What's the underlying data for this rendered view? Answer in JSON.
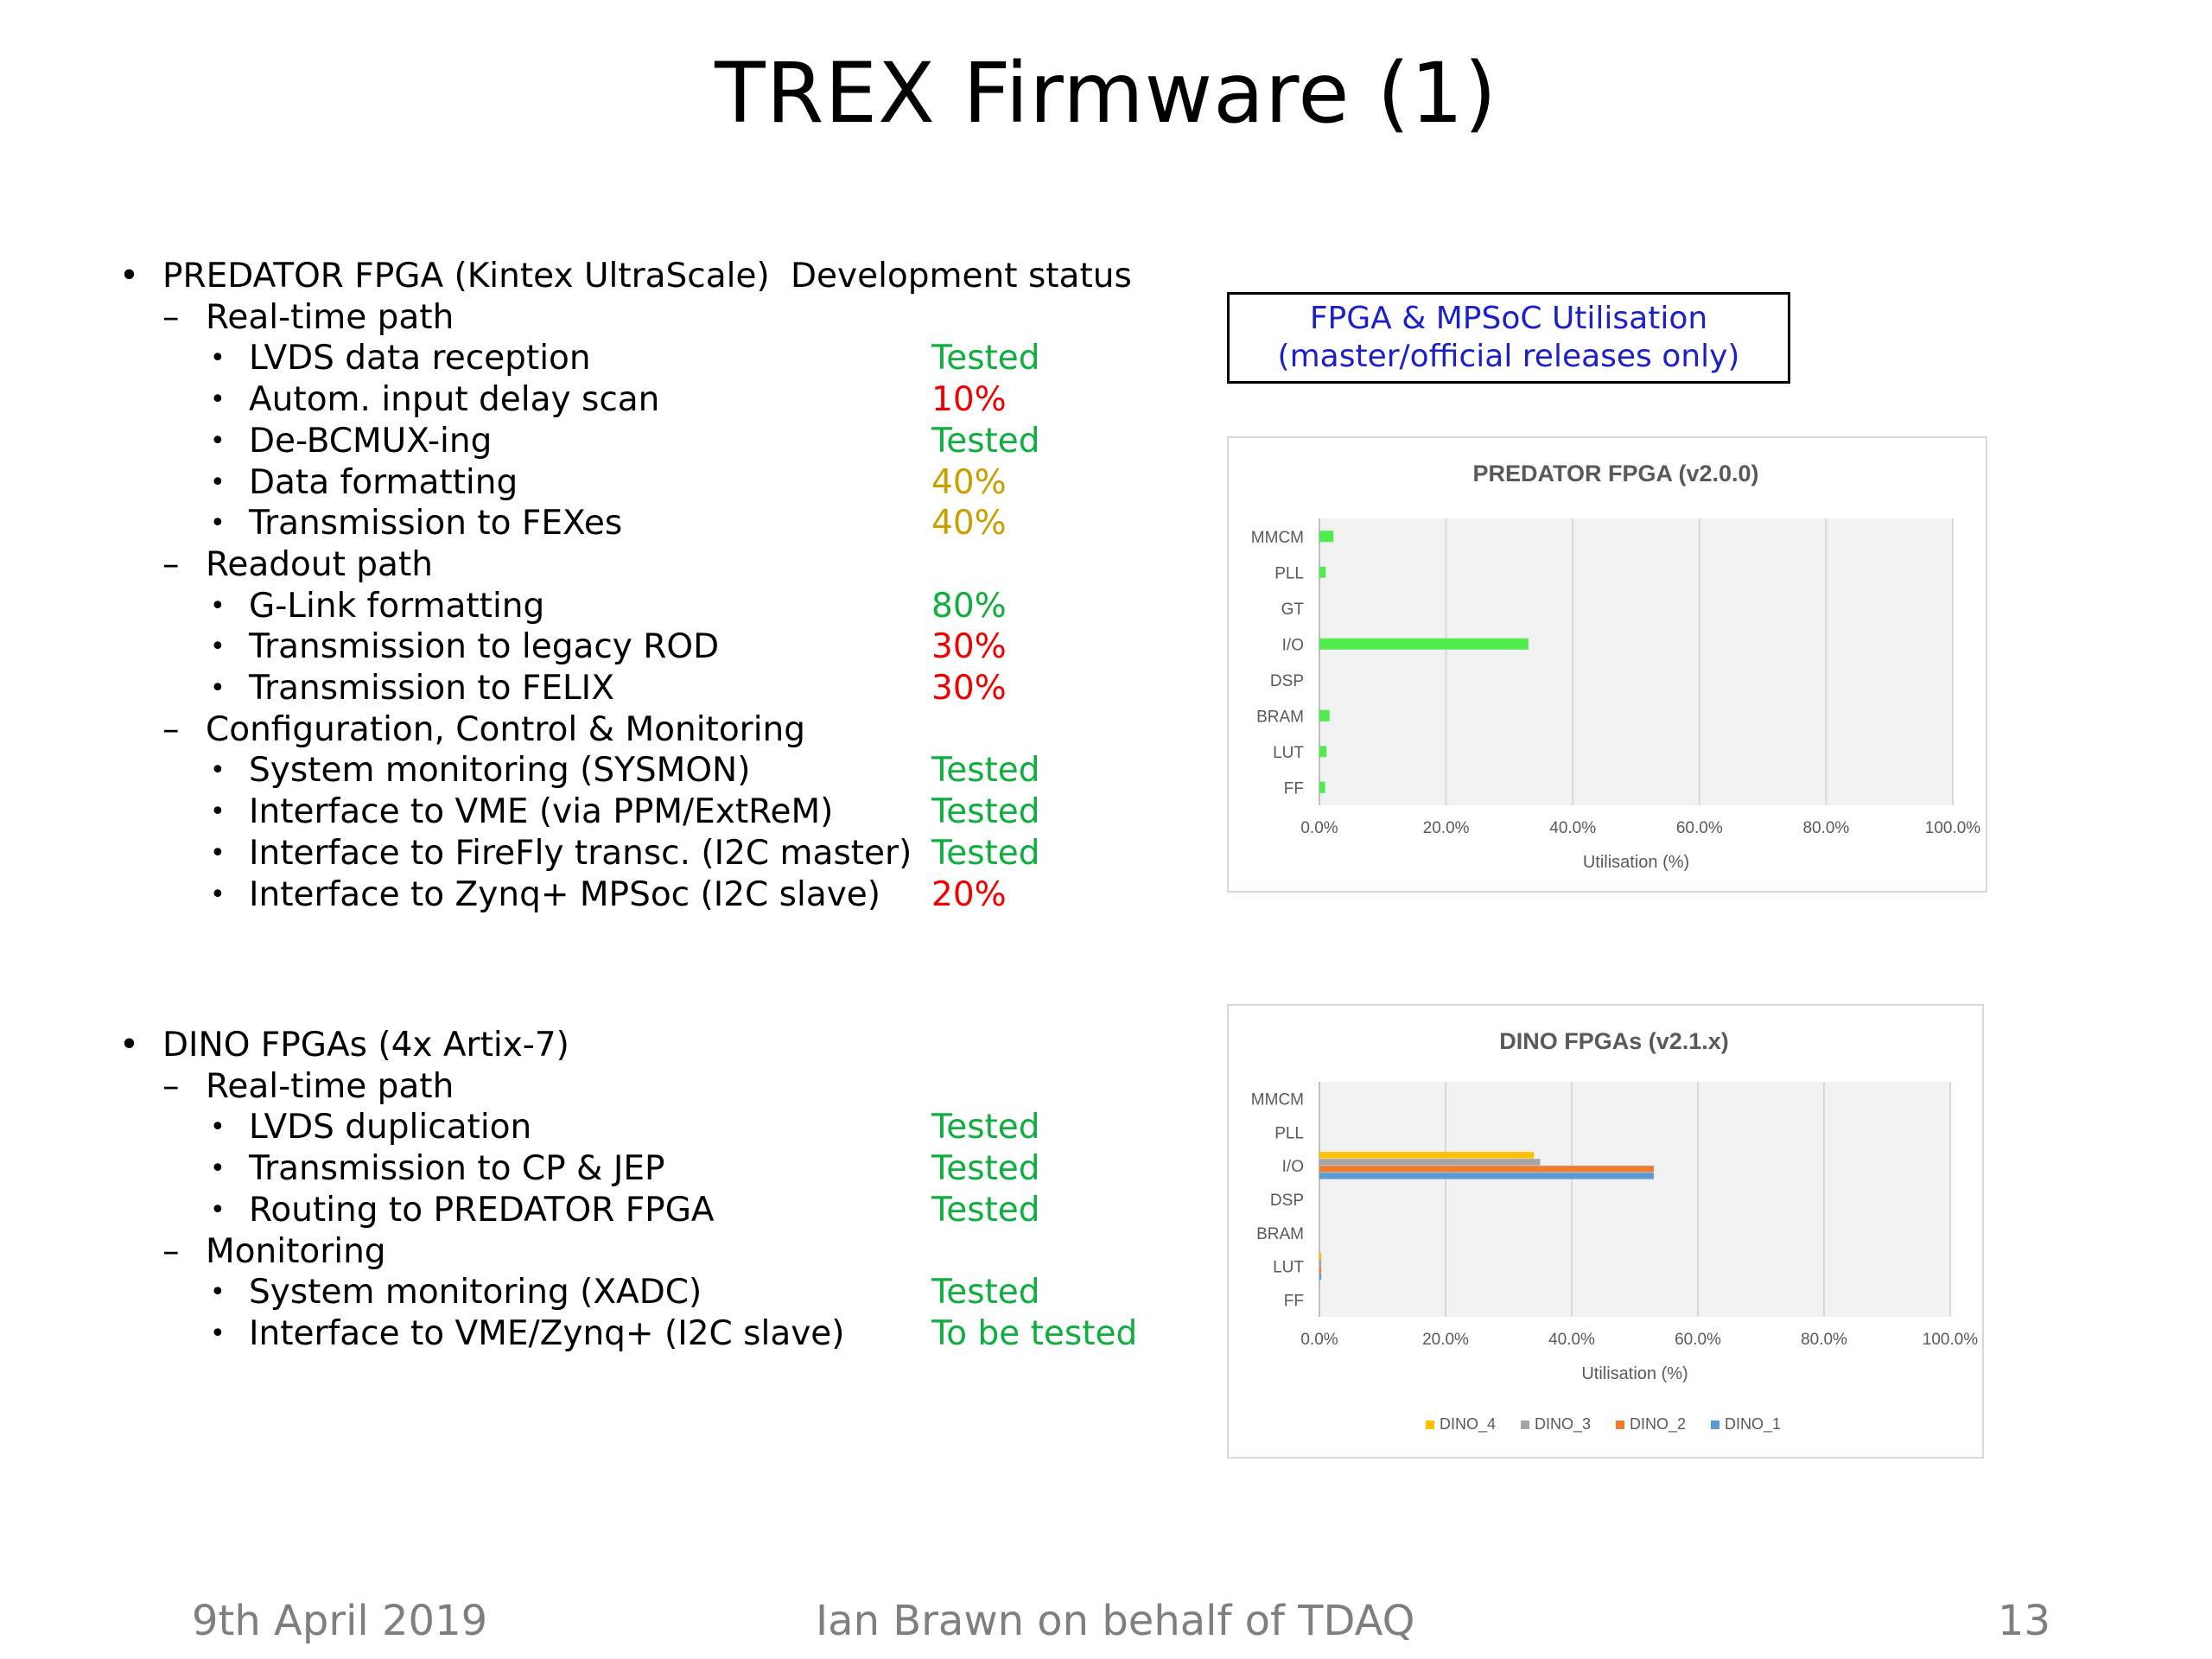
{
  "slide": {
    "title": "TREX Firmware (1)",
    "dev_status_header": "Development status",
    "chart_box": {
      "line1": "FPGA & MPSoC Utilisation",
      "line2": "(master/official releases only)"
    }
  },
  "outline": {
    "predator": [
      {
        "level": 0,
        "bullet": "•",
        "label": "PREDATOR FPGA (Kintex UltraScale)",
        "status": "",
        "color": ""
      },
      {
        "level": 1,
        "bullet": "–",
        "label": "Real-time path",
        "status": "",
        "color": ""
      },
      {
        "level": 2,
        "bullet": "•",
        "label": "LVDS data reception",
        "status": "Tested",
        "color": "#0fae3e"
      },
      {
        "level": 2,
        "bullet": "•",
        "label": "Autom. input delay scan",
        "status": "10%",
        "color": "#f20000"
      },
      {
        "level": 2,
        "bullet": "•",
        "label": "De-BCMUX-ing",
        "status": "Tested",
        "color": "#0fae3e"
      },
      {
        "level": 2,
        "bullet": "•",
        "label": "Data formatting",
        "status": "40%",
        "color": "#c9a000"
      },
      {
        "level": 2,
        "bullet": "•",
        "label": "Transmission to FEXes",
        "status": "40%",
        "color": "#c9a000"
      },
      {
        "level": 1,
        "bullet": "–",
        "label": "Readout path",
        "status": "",
        "color": ""
      },
      {
        "level": 2,
        "bullet": "•",
        "label": "G-Link formatting",
        "status": "80%",
        "color": "#0fae3e"
      },
      {
        "level": 2,
        "bullet": "•",
        "label": "Transmission to legacy ROD",
        "status": "30%",
        "color": "#f20000"
      },
      {
        "level": 2,
        "bullet": "•",
        "label": "Transmission to FELIX",
        "status": "30%",
        "color": "#f20000"
      },
      {
        "level": 1,
        "bullet": "–",
        "label": "Configuration, Control & Monitoring",
        "status": "",
        "color": ""
      },
      {
        "level": 2,
        "bullet": "•",
        "label": "System monitoring (SYSMON)",
        "status": "Tested",
        "color": "#0fae3e"
      },
      {
        "level": 2,
        "bullet": "•",
        "label": "Interface to VME (via PPM/ExtReM)",
        "status": "Tested",
        "color": "#0fae3e"
      },
      {
        "level": 2,
        "bullet": "•",
        "label": "Interface to FireFly transc. (I2C master)",
        "status": "Tested",
        "color": "#0fae3e"
      },
      {
        "level": 2,
        "bullet": "•",
        "label": "Interface to Zynq+ MPSoc  (I2C slave)",
        "status": "20%",
        "color": "#f20000"
      }
    ],
    "dino": [
      {
        "level": 0,
        "bullet": "•",
        "label": "DINO FPGAs (4x Artix-7)",
        "status": "",
        "color": ""
      },
      {
        "level": 1,
        "bullet": "–",
        "label": "Real-time path",
        "status": "",
        "color": ""
      },
      {
        "level": 2,
        "bullet": "•",
        "label": "LVDS duplication",
        "status": "Tested",
        "color": "#0fae3e"
      },
      {
        "level": 2,
        "bullet": "•",
        "label": "Transmission to CP & JEP",
        "status": "Tested",
        "color": "#0fae3e"
      },
      {
        "level": 2,
        "bullet": "•",
        "label": "Routing to PREDATOR FPGA",
        "status": "Tested",
        "color": "#0fae3e"
      },
      {
        "level": 1,
        "bullet": "–",
        "label": "Monitoring",
        "status": "",
        "color": ""
      },
      {
        "level": 2,
        "bullet": "•",
        "label": "System monitoring (XADC)",
        "status": "Tested",
        "color": "#0fae3e"
      },
      {
        "level": 2,
        "bullet": "•",
        "label": "Interface to VME/Zynq+ (I2C slave)",
        "status": "To be tested",
        "color": "#0fae3e"
      }
    ]
  },
  "chart_data": [
    {
      "type": "bar",
      "orientation": "horizontal",
      "title": "PREDATOR FPGA (v2.0.0)",
      "xlabel": "Utilisation (%)",
      "ylabel": "",
      "categories": [
        "MMCM",
        "PLL",
        "GT",
        "I/O",
        "DSP",
        "BRAM",
        "LUT",
        "FF"
      ],
      "series": [
        {
          "name": "",
          "color": "#4ded4d",
          "values": [
            2.2,
            1.0,
            0.0,
            33.0,
            0.0,
            1.6,
            1.1,
            0.9
          ]
        }
      ],
      "xlim": [
        0,
        100
      ],
      "xticks": [
        "0.0%",
        "20.0%",
        "40.0%",
        "60.0%",
        "80.0%",
        "100.0%"
      ],
      "grid": "vertical",
      "legend": "none"
    },
    {
      "type": "bar",
      "orientation": "horizontal",
      "title": "DINO FPGAs (v2.1.x)",
      "xlabel": "Utilisation (%)",
      "ylabel": "",
      "categories": [
        "MMCM",
        "PLL",
        "I/O",
        "DSP",
        "BRAM",
        "LUT",
        "FF"
      ],
      "series": [
        {
          "name": "DINO_4",
          "color": "#ffc000",
          "values": [
            0,
            0,
            34.0,
            0,
            0,
            0.3,
            0
          ]
        },
        {
          "name": "DINO_3",
          "color": "#a5a5a5",
          "values": [
            0,
            0,
            35.0,
            0,
            0,
            0.3,
            0
          ]
        },
        {
          "name": "DINO_2",
          "color": "#ed7d31",
          "values": [
            0,
            0,
            53.0,
            0,
            0,
            0.3,
            0
          ]
        },
        {
          "name": "DINO_1",
          "color": "#5b9bd5",
          "values": [
            0,
            0,
            53.0,
            0,
            0,
            0.3,
            0
          ]
        }
      ],
      "legend_order": [
        "DINO_4",
        "DINO_3",
        "DINO_2",
        "DINO_1"
      ],
      "xlim": [
        0,
        100
      ],
      "xticks": [
        "0.0%",
        "20.0%",
        "40.0%",
        "60.0%",
        "80.0%",
        "100.0%"
      ],
      "grid": "vertical",
      "legend": "bottom"
    }
  ],
  "footer": {
    "date": "9th April 2019",
    "author": "Ian Brawn on behalf of TDAQ",
    "page": "13"
  }
}
